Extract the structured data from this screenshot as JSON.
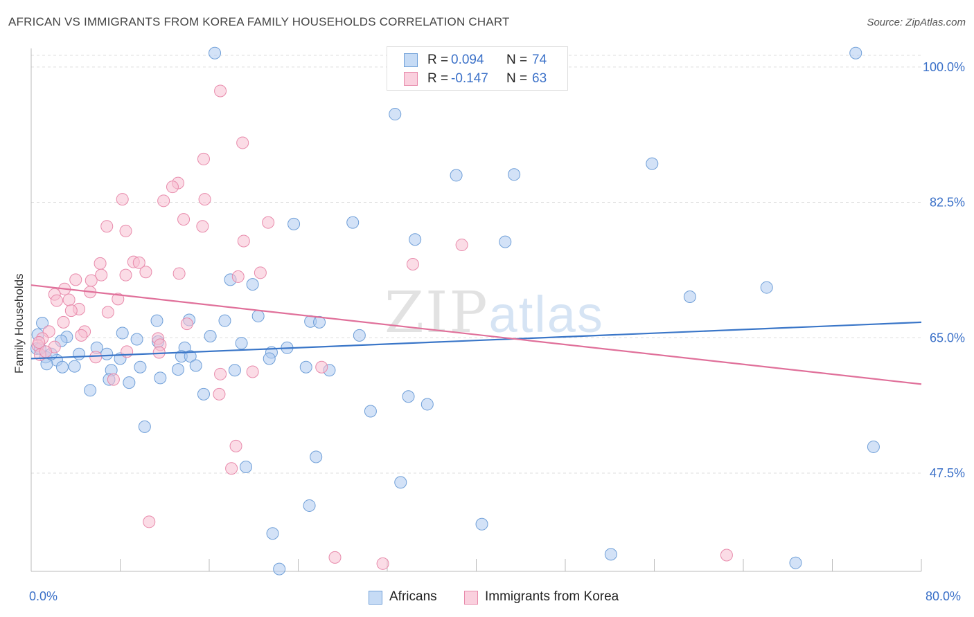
{
  "title": "AFRICAN VS IMMIGRANTS FROM KOREA FAMILY HOUSEHOLDS CORRELATION CHART",
  "source": "Source: ZipAtlas.com",
  "watermark": {
    "zip": "ZIP",
    "atlas": "atlas"
  },
  "legend_top": {
    "r_label": "R =",
    "n_label": "N =",
    "series": [
      {
        "name": "Africans",
        "r": "0.094",
        "n": "74"
      },
      {
        "name": "Immigrants from Korea",
        "r": "-0.147",
        "n": "63"
      }
    ]
  },
  "colors": {
    "africans_fill": "#aecbf0",
    "africans_stroke": "#6f9fd8",
    "africans_line": "#3a76c8",
    "korea_fill": "#f7bfd2",
    "korea_stroke": "#e88aab",
    "korea_line": "#e0709a",
    "tick_text": "#3a70c8",
    "grid": "#dddddd"
  },
  "chart_data": {
    "type": "scatter",
    "title": "AFRICAN VS IMMIGRANTS FROM KOREA FAMILY HOUSEHOLDS CORRELATION CHART",
    "xlabel": "",
    "ylabel": "Family Households",
    "xlim": [
      0,
      80
    ],
    "ylim": [
      34.8,
      102.4
    ],
    "x_tick_labels": [
      "0.0%",
      "80.0%"
    ],
    "y_ticks": [
      47.5,
      65.0,
      82.5,
      100.0
    ],
    "y_tick_labels": [
      "47.5%",
      "65.0%",
      "82.5%",
      "100.0%"
    ],
    "grid": true,
    "legend_position": "top-center",
    "series": [
      {
        "name": "Africans",
        "r": 0.094,
        "n": 74,
        "trend": {
          "x": [
            0,
            80
          ],
          "y": [
            62.3,
            67.0
          ]
        },
        "points": [
          [
            16.5,
            101.8
          ],
          [
            74.1,
            101.8
          ],
          [
            32.7,
            93.9
          ],
          [
            38.2,
            86.0
          ],
          [
            43.4,
            86.1
          ],
          [
            55.8,
            87.5
          ],
          [
            23.6,
            79.7
          ],
          [
            28.9,
            79.9
          ],
          [
            34.5,
            77.7
          ],
          [
            42.6,
            77.4
          ],
          [
            17.9,
            72.5
          ],
          [
            19.9,
            71.9
          ],
          [
            59.2,
            70.3
          ],
          [
            66.1,
            71.5
          ],
          [
            11.3,
            67.2
          ],
          [
            14.2,
            67.3
          ],
          [
            17.4,
            67.2
          ],
          [
            20.4,
            67.8
          ],
          [
            25.1,
            67.1
          ],
          [
            25.9,
            67.0
          ],
          [
            3.2,
            65.1
          ],
          [
            8.2,
            65.6
          ],
          [
            9.5,
            64.8
          ],
          [
            11.4,
            64.5
          ],
          [
            16.1,
            65.2
          ],
          [
            18.9,
            64.3
          ],
          [
            23.0,
            63.7
          ],
          [
            29.5,
            65.3
          ],
          [
            5.9,
            63.7
          ],
          [
            13.8,
            63.7
          ],
          [
            0.5,
            63.6
          ],
          [
            1.3,
            62.5
          ],
          [
            2.3,
            62.1
          ],
          [
            4.3,
            62.9
          ],
          [
            6.8,
            62.9
          ],
          [
            8.0,
            62.3
          ],
          [
            13.5,
            62.6
          ],
          [
            14.3,
            62.6
          ],
          [
            21.6,
            63.1
          ],
          [
            1.4,
            61.6
          ],
          [
            2.8,
            61.2
          ],
          [
            3.9,
            61.3
          ],
          [
            7.2,
            60.8
          ],
          [
            9.8,
            61.2
          ],
          [
            13.2,
            60.9
          ],
          [
            14.8,
            61.4
          ],
          [
            18.3,
            60.8
          ],
          [
            21.4,
            62.3
          ],
          [
            24.7,
            61.2
          ],
          [
            7.0,
            59.6
          ],
          [
            11.6,
            59.8
          ],
          [
            5.3,
            58.2
          ],
          [
            8.8,
            59.2
          ],
          [
            26.8,
            60.8
          ],
          [
            15.5,
            57.7
          ],
          [
            33.9,
            57.4
          ],
          [
            35.6,
            56.4
          ],
          [
            30.5,
            55.5
          ],
          [
            10.2,
            53.5
          ],
          [
            75.7,
            50.9
          ],
          [
            25.6,
            49.6
          ],
          [
            19.3,
            48.3
          ],
          [
            33.2,
            46.3
          ],
          [
            25.0,
            43.3
          ],
          [
            40.5,
            40.9
          ],
          [
            21.7,
            39.7
          ],
          [
            52.1,
            37.0
          ],
          [
            22.3,
            35.1
          ],
          [
            68.7,
            35.9
          ],
          [
            0.6,
            65.4
          ],
          [
            1.0,
            66.9
          ],
          [
            2.7,
            64.6
          ],
          [
            1.8,
            62.9
          ],
          [
            0.8,
            63.6
          ]
        ]
      },
      {
        "name": "Immigrants from Korea",
        "r": -0.147,
        "n": 63,
        "trend": {
          "x": [
            0,
            80
          ],
          "y": [
            71.8,
            59.0
          ]
        },
        "points": [
          [
            17.0,
            96.9
          ],
          [
            19.0,
            90.2
          ],
          [
            15.5,
            88.1
          ],
          [
            13.2,
            85.0
          ],
          [
            12.7,
            84.5
          ],
          [
            8.2,
            82.9
          ],
          [
            11.9,
            82.7
          ],
          [
            15.6,
            82.9
          ],
          [
            13.7,
            80.3
          ],
          [
            6.8,
            79.4
          ],
          [
            8.5,
            78.8
          ],
          [
            15.4,
            79.4
          ],
          [
            21.3,
            79.9
          ],
          [
            19.1,
            77.5
          ],
          [
            6.2,
            74.6
          ],
          [
            9.2,
            74.8
          ],
          [
            9.7,
            74.7
          ],
          [
            6.3,
            73.1
          ],
          [
            8.5,
            73.1
          ],
          [
            10.3,
            73.5
          ],
          [
            13.3,
            73.3
          ],
          [
            18.6,
            72.9
          ],
          [
            20.6,
            73.4
          ],
          [
            34.3,
            74.5
          ],
          [
            38.7,
            77.0
          ],
          [
            4.0,
            72.5
          ],
          [
            5.4,
            72.4
          ],
          [
            3.0,
            71.3
          ],
          [
            2.1,
            70.6
          ],
          [
            5.3,
            70.9
          ],
          [
            7.8,
            70.0
          ],
          [
            2.3,
            69.8
          ],
          [
            3.4,
            69.9
          ],
          [
            4.3,
            68.7
          ],
          [
            3.6,
            68.5
          ],
          [
            6.9,
            68.3
          ],
          [
            2.9,
            67.0
          ],
          [
            4.8,
            65.8
          ],
          [
            1.6,
            65.8
          ],
          [
            4.5,
            65.3
          ],
          [
            1.0,
            64.9
          ],
          [
            2.1,
            63.8
          ],
          [
            0.6,
            64.0
          ],
          [
            11.4,
            64.9
          ],
          [
            11.6,
            64.1
          ],
          [
            14.0,
            66.8
          ],
          [
            11.5,
            63.1
          ],
          [
            8.6,
            63.2
          ],
          [
            5.8,
            62.5
          ],
          [
            0.8,
            62.8
          ],
          [
            17.0,
            60.3
          ],
          [
            19.9,
            60.6
          ],
          [
            26.1,
            61.2
          ],
          [
            7.4,
            59.6
          ],
          [
            16.9,
            57.7
          ],
          [
            18.4,
            51.0
          ],
          [
            18.0,
            48.1
          ],
          [
            10.6,
            41.2
          ],
          [
            27.3,
            36.6
          ],
          [
            31.6,
            35.8
          ],
          [
            62.5,
            36.9
          ],
          [
            0.7,
            64.4
          ],
          [
            1.3,
            63.2
          ]
        ]
      }
    ]
  }
}
